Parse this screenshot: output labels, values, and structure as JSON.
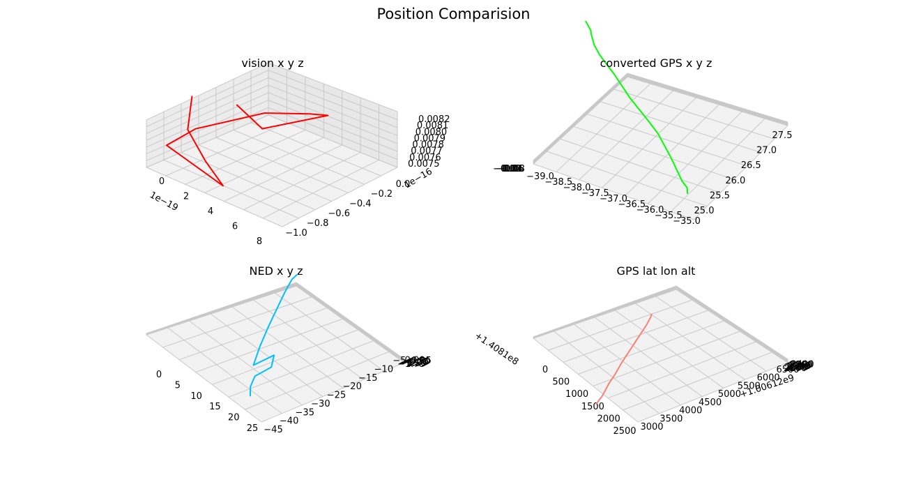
{
  "figure": {
    "title": "Position Comparision"
  },
  "chart_data": [
    {
      "type": "line3d",
      "title": "vision x y z",
      "series_color": "#ff0000",
      "x_ticks": [
        "0",
        "2",
        "4",
        "6",
        "8"
      ],
      "x_offset": "1e−19",
      "y_ticks": [
        "−1.0",
        "−0.8",
        "−0.6",
        "−0.4",
        "−0.2",
        "0.0"
      ],
      "y_offset": "1e−16",
      "z_ticks": [
        "0.0075",
        "0.0076",
        "0.0077",
        "0.0078",
        "0.0079",
        "0.0080",
        "0.0081",
        "0.0082"
      ],
      "points": [
        [
          2.2,
          -0.45,
          0.00806
        ],
        [
          4.5,
          -0.42,
          0.0079
        ],
        [
          6.5,
          -0.05,
          0.00797
        ],
        [
          5.5,
          -0.12,
          0.00798
        ],
        [
          3.8,
          -0.35,
          0.008
        ],
        [
          1.2,
          -0.7,
          0.0079
        ],
        [
          0.8,
          -0.9,
          0.0078
        ],
        [
          8.0,
          -1.0,
          0.0076
        ],
        [
          5.5,
          -0.95,
          0.00775
        ],
        [
          3.0,
          -0.9,
          0.00795
        ],
        [
          2.8,
          -0.85,
          0.0082
        ]
      ]
    },
    {
      "type": "line3d",
      "title": "converted GPS x y z",
      "series_color": "#00ff00",
      "x_ticks": [
        "−39.0",
        "−38.5",
        "−38.0",
        "−37.5",
        "−37.0",
        "−36.5",
        "−36.0",
        "−35.5",
        "−35.0"
      ],
      "y_ticks": [
        "25.0",
        "25.5",
        "26.0",
        "26.5",
        "27.0",
        "27.5"
      ],
      "z_ticks": [
        "−0.00",
        "−0.02",
        "−0.04",
        "−0.06",
        "−0.08"
      ],
      "points": [
        [
          -35.1,
          25.1
        ],
        [
          -35.1,
          25.3
        ],
        [
          -35.3,
          25.4
        ],
        [
          -35.7,
          25.9
        ],
        [
          -36.2,
          26.4
        ],
        [
          -36.6,
          26.6
        ],
        [
          -37.3,
          26.9
        ],
        [
          -37.9,
          27.3
        ],
        [
          -38.5,
          27.6
        ],
        [
          -38.7,
          27.8
        ],
        [
          -38.8,
          28.1
        ],
        [
          -38.8,
          28.2
        ],
        [
          -39.0,
          28.4
        ]
      ]
    },
    {
      "type": "line3d",
      "title": "NED x y z",
      "series_color": "#00bfff",
      "x_ticks": [
        "0",
        "5",
        "10",
        "15",
        "20",
        "25"
      ],
      "y_ticks": [
        "−45",
        "−40",
        "−35",
        "−30",
        "−25",
        "−20",
        "−15",
        "−10",
        "−5"
      ],
      "z_ticks": [
        "−1.75",
        "−1.50",
        "−1.25",
        "−1.00",
        "−0.75",
        "−0.50",
        "−0.25",
        "0.00"
      ],
      "points": [
        [
          25,
          -40
        ],
        [
          22,
          -38
        ],
        [
          20,
          -35
        ],
        [
          22,
          -30
        ],
        [
          19,
          -27
        ],
        [
          16,
          -33
        ],
        [
          12,
          -28
        ],
        [
          8,
          -22
        ],
        [
          5,
          -17
        ],
        [
          2,
          -12
        ],
        [
          0,
          -8
        ],
        [
          0,
          -6
        ]
      ]
    },
    {
      "type": "line3d",
      "title": "GPS lat lon alt",
      "series_color": "#fa8072",
      "x_ticks": [
        "0",
        "500",
        "1000",
        "1500",
        "2000",
        "2500"
      ],
      "x_offset": "+1.4081e8",
      "y_ticks": [
        "3000",
        "3500",
        "4000",
        "4500",
        "5000",
        "5500",
        "6000",
        "6500"
      ],
      "y_offset": "+1.00612e9",
      "z_ticks": [
        "2260",
        "2280",
        "2300",
        "2320",
        "2340",
        "2360",
        "2380",
        "2400"
      ],
      "points": [
        [
          2600,
          6000
        ],
        [
          2500,
          5800
        ],
        [
          2300,
          5500
        ],
        [
          2000,
          5200
        ],
        [
          1700,
          4900
        ],
        [
          1500,
          4700
        ],
        [
          1200,
          4400
        ],
        [
          900,
          4000
        ],
        [
          600,
          3700
        ],
        [
          400,
          3400
        ],
        [
          250,
          3200
        ],
        [
          100,
          3100
        ],
        [
          0,
          3000
        ]
      ]
    }
  ]
}
